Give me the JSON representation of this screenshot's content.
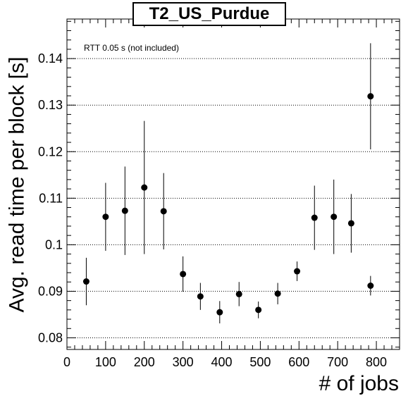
{
  "chart_data": {
    "type": "scatter",
    "title": "T2_US_Purdue",
    "xlabel": "# of jobs",
    "ylabel": "Avg. read time per block [s]",
    "annotation": "RTT 0.05 s (not included)",
    "xlim": [
      0,
      860
    ],
    "ylim": [
      0.0775,
      0.1485
    ],
    "xticks": [
      0,
      100,
      200,
      300,
      400,
      500,
      600,
      700,
      800
    ],
    "yticks": [
      0.08,
      0.09,
      0.1,
      0.11,
      0.12,
      0.13,
      0.14
    ],
    "ytick_labels": [
      "0.08",
      "0.09",
      "0.1",
      "0.11",
      "0.12",
      "0.13",
      "0.14"
    ],
    "grid": "y-dotted",
    "points": [
      {
        "x": 50,
        "y": 0.0921,
        "err": 0.0051
      },
      {
        "x": 100,
        "y": 0.106,
        "err": 0.0073
      },
      {
        "x": 150,
        "y": 0.1073,
        "err": 0.0095
      },
      {
        "x": 200,
        "y": 0.1123,
        "err": 0.0143
      },
      {
        "x": 250,
        "y": 0.1072,
        "err": 0.0082
      },
      {
        "x": 300,
        "y": 0.0937,
        "err": 0.0038
      },
      {
        "x": 345,
        "y": 0.0889,
        "err": 0.0029
      },
      {
        "x": 395,
        "y": 0.0855,
        "err": 0.0024
      },
      {
        "x": 445,
        "y": 0.0894,
        "err": 0.0026
      },
      {
        "x": 495,
        "y": 0.086,
        "err": 0.0018
      },
      {
        "x": 545,
        "y": 0.0895,
        "err": 0.0023
      },
      {
        "x": 595,
        "y": 0.0943,
        "err": 0.0021
      },
      {
        "x": 640,
        "y": 0.1058,
        "err": 0.0069
      },
      {
        "x": 690,
        "y": 0.106,
        "err": 0.008
      },
      {
        "x": 735,
        "y": 0.1046,
        "err": 0.0063
      },
      {
        "x": 785,
        "y": 0.1319,
        "err": 0.0114
      },
      {
        "x": 785,
        "y": 0.0912,
        "err": 0.0021
      }
    ]
  }
}
